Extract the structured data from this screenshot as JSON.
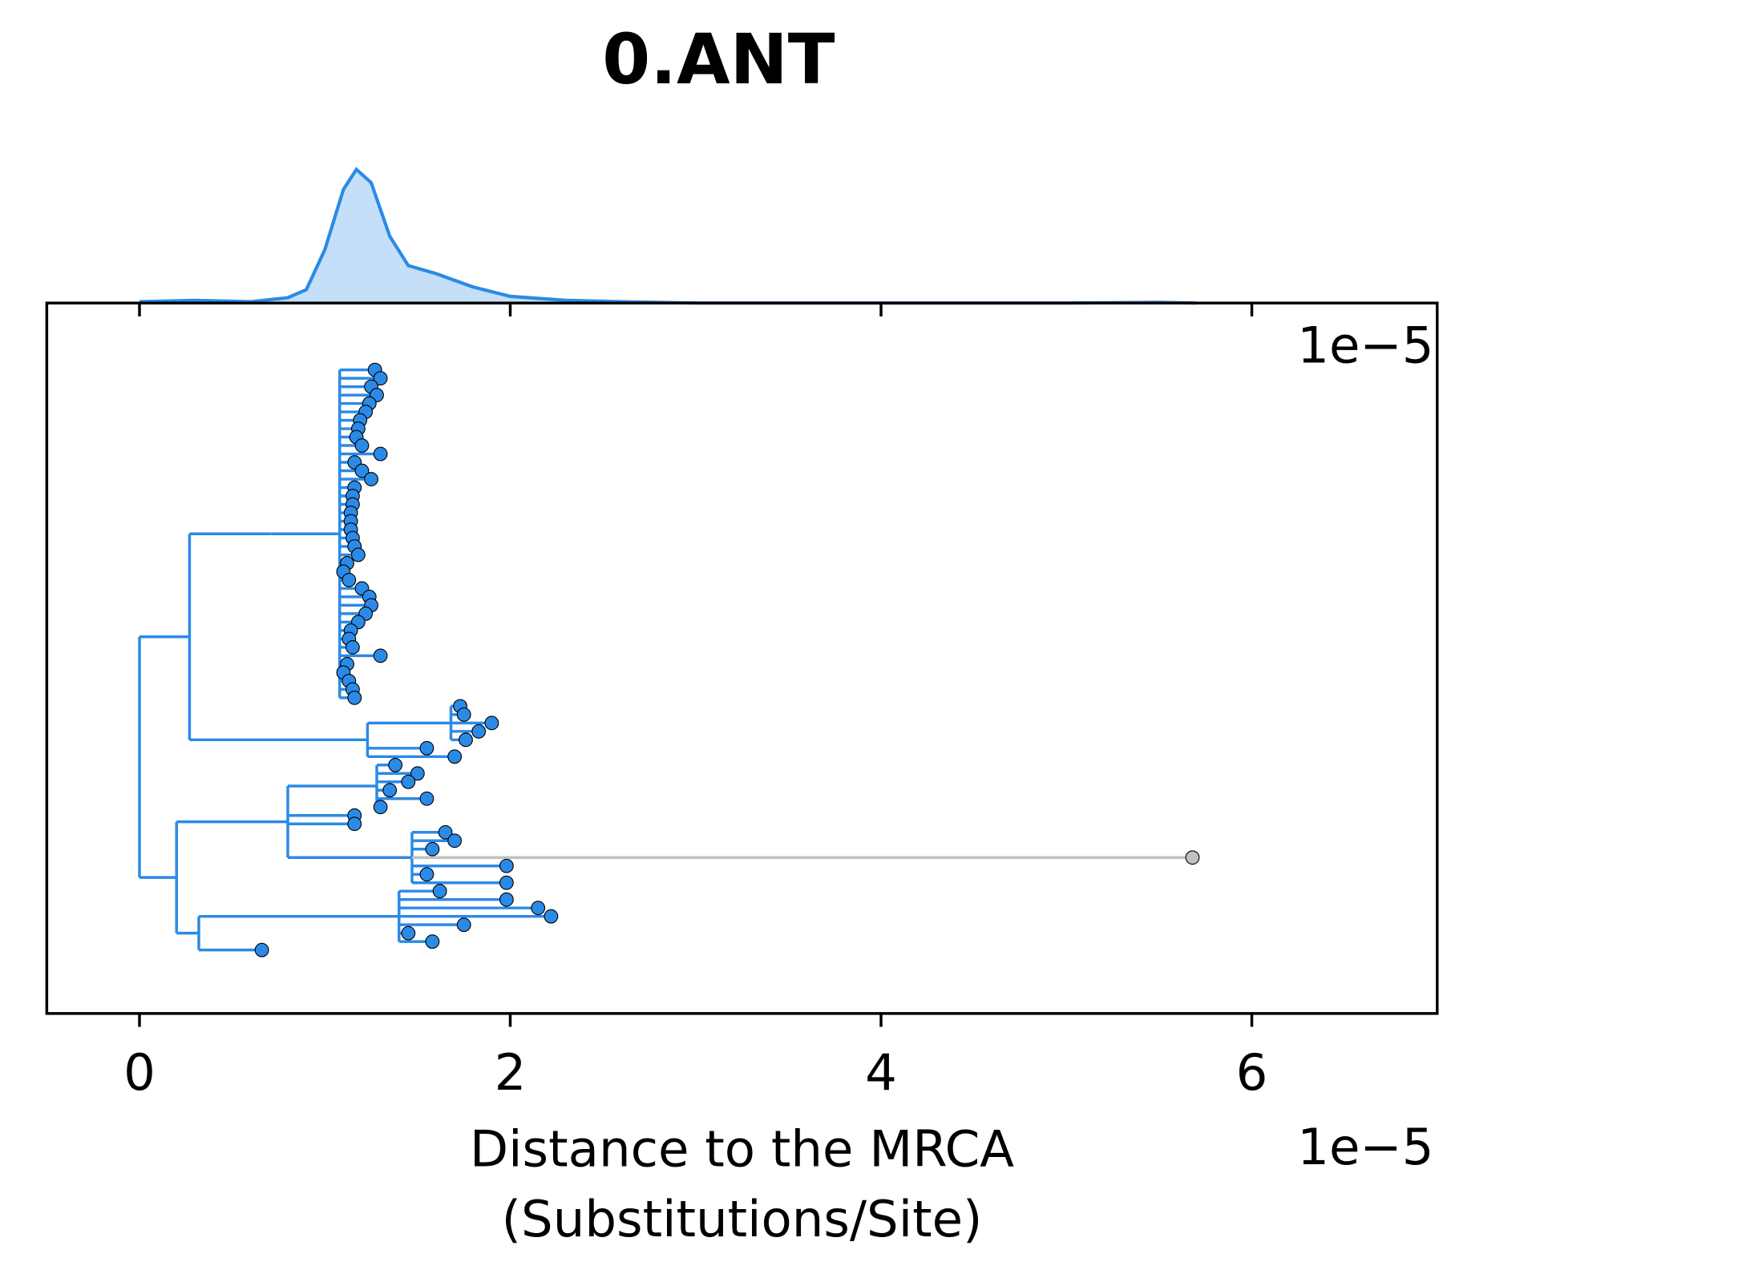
{
  "chart_data": [
    {
      "type": "density",
      "color": "#2b8ae6",
      "fill": "#c5dff8",
      "x": [
        0,
        0.3,
        0.6,
        0.8,
        0.9,
        1.0,
        1.1,
        1.17,
        1.25,
        1.35,
        1.45,
        1.6,
        1.8,
        2.0,
        2.3,
        2.6,
        3.0,
        4.0,
        5.0,
        5.5,
        5.7
      ],
      "values": [
        0.01,
        0.02,
        0.01,
        0.04,
        0.1,
        0.4,
        0.85,
        1.0,
        0.9,
        0.5,
        0.28,
        0.22,
        0.12,
        0.05,
        0.02,
        0.01,
        0,
        0,
        0,
        0.005,
        0
      ],
      "xlim": [
        -0.5,
        7
      ],
      "ylim": [
        0,
        1
      ]
    },
    {
      "type": "tree",
      "title": "0.ANT",
      "xlabel": [
        "Distance to the MRCA",
        "(Substitutions/Site)"
      ],
      "offset_label": "1e−5",
      "color": "#2b8ae6",
      "xlim": [
        -0.5,
        7
      ],
      "xticks": [
        0,
        2,
        4,
        6
      ],
      "nodes": [
        {
          "x": 0,
          "parent": null
        },
        {
          "x": 0.27,
          "parent": 0
        },
        {
          "x": 0.71,
          "parent": 1
        },
        {
          "x": 1.08,
          "parent": 2
        },
        {
          "x": 1.27,
          "parent": 3
        },
        {
          "x": 1.3,
          "parent": 3
        },
        {
          "x": 1.25,
          "parent": 3
        },
        {
          "x": 1.28,
          "parent": 3
        },
        {
          "x": 1.24,
          "parent": 3
        },
        {
          "x": 1.22,
          "parent": 3
        },
        {
          "x": 1.19,
          "parent": 3
        },
        {
          "x": 1.18,
          "parent": 3
        },
        {
          "x": 1.17,
          "parent": 3
        },
        {
          "x": 1.2,
          "parent": 3
        },
        {
          "x": 1.3,
          "parent": 3
        },
        {
          "x": 1.16,
          "parent": 3
        },
        {
          "x": 1.2,
          "parent": 3
        },
        {
          "x": 1.25,
          "parent": 3
        },
        {
          "x": 1.16,
          "parent": 3
        },
        {
          "x": 1.15,
          "parent": 3
        },
        {
          "x": 1.15,
          "parent": 3
        },
        {
          "x": 1.14,
          "parent": 3
        },
        {
          "x": 1.14,
          "parent": 3
        },
        {
          "x": 1.14,
          "parent": 3
        },
        {
          "x": 1.15,
          "parent": 3
        },
        {
          "x": 1.16,
          "parent": 3
        },
        {
          "x": 1.18,
          "parent": 3
        },
        {
          "x": 1.12,
          "parent": 3
        },
        {
          "x": 1.1,
          "parent": 3
        },
        {
          "x": 1.13,
          "parent": 3
        },
        {
          "x": 1.2,
          "parent": 3
        },
        {
          "x": 1.24,
          "parent": 3
        },
        {
          "x": 1.25,
          "parent": 3
        },
        {
          "x": 1.22,
          "parent": 3
        },
        {
          "x": 1.18,
          "parent": 3
        },
        {
          "x": 1.14,
          "parent": 3
        },
        {
          "x": 1.13,
          "parent": 3
        },
        {
          "x": 1.15,
          "parent": 3
        },
        {
          "x": 1.3,
          "parent": 3
        },
        {
          "x": 1.12,
          "parent": 3
        },
        {
          "x": 1.1,
          "parent": 3
        },
        {
          "x": 1.13,
          "parent": 3
        },
        {
          "x": 1.15,
          "parent": 3
        },
        {
          "x": 1.16,
          "parent": 3
        },
        {
          "x": 1.23,
          "parent": 1
        },
        {
          "x": 1.68,
          "parent": 44
        },
        {
          "x": 1.73,
          "parent": 45
        },
        {
          "x": 1.75,
          "parent": 45
        },
        {
          "x": 1.9,
          "parent": 45
        },
        {
          "x": 1.83,
          "parent": 45
        },
        {
          "x": 1.76,
          "parent": 45
        },
        {
          "x": 1.55,
          "parent": 44
        },
        {
          "x": 1.7,
          "parent": 44
        },
        {
          "x": 0.2,
          "parent": 0
        },
        {
          "x": 0.8,
          "parent": 53
        },
        {
          "x": 1.28,
          "parent": 54
        },
        {
          "x": 1.38,
          "parent": 55
        },
        {
          "x": 1.5,
          "parent": 55
        },
        {
          "x": 1.45,
          "parent": 55
        },
        {
          "x": 1.35,
          "parent": 55
        },
        {
          "x": 1.55,
          "parent": 55
        },
        {
          "x": 1.3,
          "parent": 55
        },
        {
          "x": 1.16,
          "parent": 54
        },
        {
          "x": 1.16,
          "parent": 54
        },
        {
          "x": 1.47,
          "parent": 54
        },
        {
          "x": 1.65,
          "parent": 64
        },
        {
          "x": 1.7,
          "parent": 64
        },
        {
          "x": 1.58,
          "parent": 64
        },
        {
          "x": 5.68,
          "parent": 64,
          "color": "#c0c0c0"
        },
        {
          "x": 1.98,
          "parent": 64
        },
        {
          "x": 1.55,
          "parent": 64
        },
        {
          "x": 1.98,
          "parent": 64
        },
        {
          "x": 0.32,
          "parent": 53
        },
        {
          "x": 1.4,
          "parent": 72
        },
        {
          "x": 1.62,
          "parent": 73
        },
        {
          "x": 1.98,
          "parent": 73
        },
        {
          "x": 2.15,
          "parent": 73
        },
        {
          "x": 2.22,
          "parent": 73
        },
        {
          "x": 1.75,
          "parent": 73
        },
        {
          "x": 1.45,
          "parent": 73
        },
        {
          "x": 1.58,
          "parent": 73
        },
        {
          "x": 0.66,
          "parent": 72
        }
      ]
    }
  ]
}
